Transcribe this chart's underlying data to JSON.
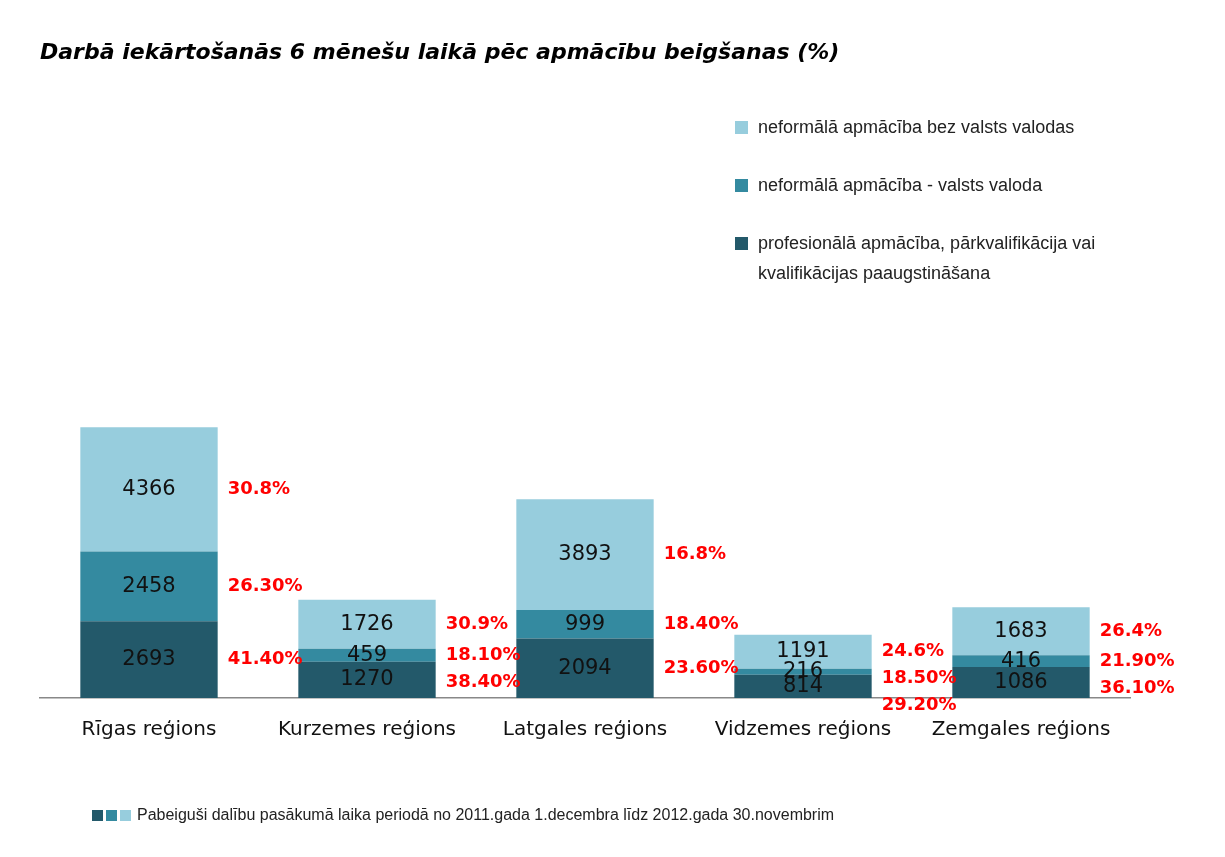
{
  "chart_data": {
    "type": "bar",
    "stacked": true,
    "title": "Darbā iekārtošanās 6 mēnešu laikā pēc apmācību beigšanas (%)",
    "categories": [
      "Rīgas reģions",
      "Kurzemes reģions",
      "Latgales reģions",
      "Vidzemes reģions",
      "Zemgales reģions"
    ],
    "series": [
      {
        "name": "profesionālā apmācība, pārkvalifikācija vai kvalifikācijas paaugstināšana",
        "color": "#23596a",
        "values": [
          2693,
          1270,
          2094,
          814,
          1086
        ]
      },
      {
        "name": "neformālā apmācība - valsts valoda",
        "color": "#348aa0",
        "values": [
          2458,
          459,
          999,
          216,
          416
        ]
      },
      {
        "name": "neformālā apmācība bez valsts valodas",
        "color": "#97cddd",
        "values": [
          4366,
          1726,
          3893,
          1191,
          1683
        ]
      }
    ],
    "data_labels": true,
    "legend": "top right",
    "grid": false,
    "annotations": [
      "41.40%",
      "26.30%",
      "30.8%",
      "38.40%",
      "18.10%",
      "30.9%",
      "23.60%",
      "18.40%",
      "16.8%",
      "29.20%",
      "18.50%",
      "24.6%",
      "36.10%",
      "21.90%",
      "26.4%",
      "Pabeiguši dalību pasākumā laika periodā no 2011.gada 1.decembra līdz 2012.gada 30.novembrim"
    ]
  }
}
